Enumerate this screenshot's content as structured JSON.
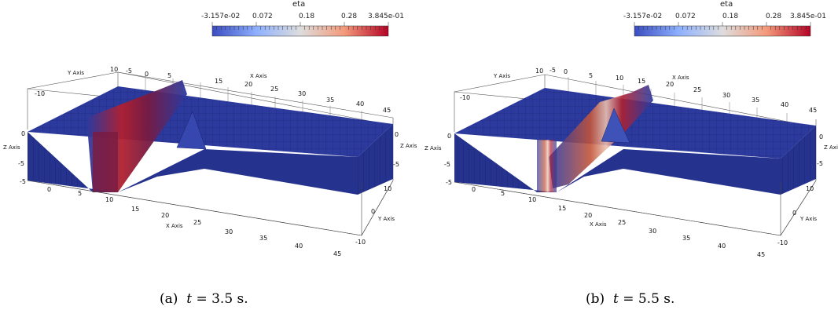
{
  "figure": {
    "colorbar": {
      "title": "eta",
      "labels": [
        "-3.157e-02",
        "0.072",
        "0.18",
        "0.28",
        "3.845e-01"
      ],
      "min": -0.03157,
      "max": 0.3845,
      "colors": [
        "#3b4cc0",
        "#8db0fe",
        "#dddddd",
        "#f49a7b",
        "#b40426"
      ]
    },
    "axes": {
      "x_label": "X Axis",
      "y_label": "Y Axis",
      "z_label": "Z Axis",
      "x_ticks": [
        "-5",
        "0",
        "5",
        "10",
        "15",
        "20",
        "25",
        "30",
        "35",
        "40",
        "45"
      ],
      "y_ticks": [
        "-10",
        "0",
        "10"
      ],
      "z_ticks": [
        "0",
        "-5"
      ]
    },
    "panels": [
      {
        "id": "a",
        "caption_prefix": "(a)",
        "caption_var": "t",
        "caption_value": "= 3.5 s.",
        "time_s": 3.5
      },
      {
        "id": "b",
        "caption_prefix": "(b)",
        "caption_var": "t",
        "caption_value": "= 5.5 s.",
        "time_s": 5.5
      }
    ]
  }
}
